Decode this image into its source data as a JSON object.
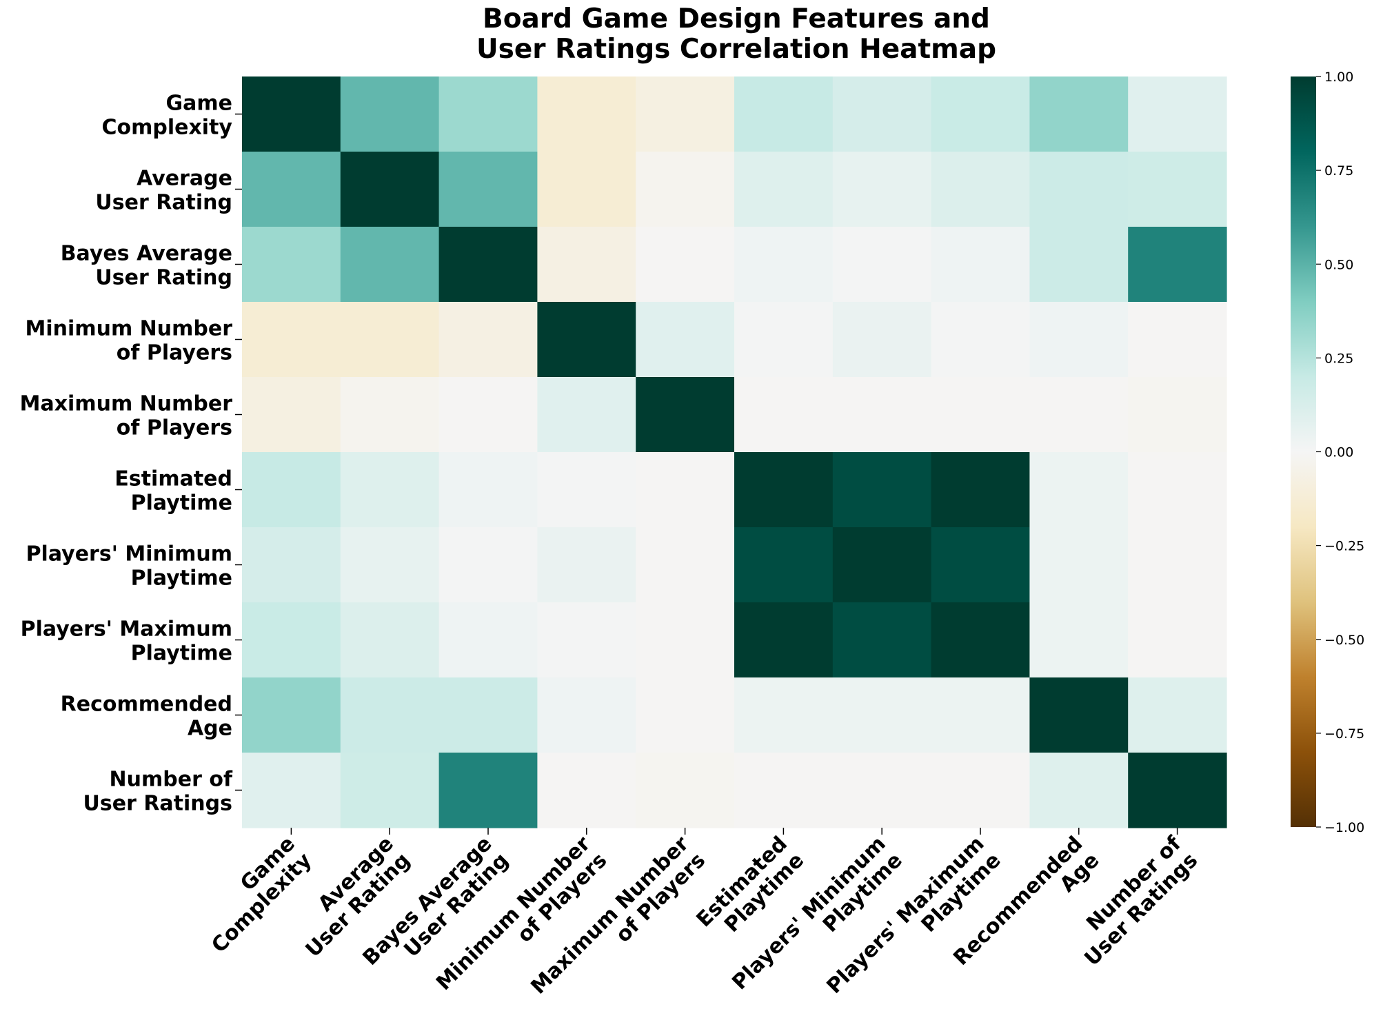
{
  "chart_data": {
    "type": "heatmap",
    "title": "Board Game Design Features and User Ratings Correlation Heatmap",
    "title_lines": [
      "Board Game Design Features and",
      "User Ratings Correlation Heatmap"
    ],
    "xlabel": "",
    "ylabel": "",
    "categories": [
      "Game Complexity",
      "Average User Rating",
      "Bayes Average User Rating",
      "Minimum Number of Players",
      "Maximum Number of Players",
      "Estimated Playtime",
      "Players' Minimum Playtime",
      "Players' Maximum Playtime",
      "Recommended Age",
      "Number of User Ratings"
    ],
    "category_lines": [
      [
        "Game",
        "Complexity"
      ],
      [
        "Average",
        "User Rating"
      ],
      [
        "Bayes Average",
        "User Rating"
      ],
      [
        "Minimum Number",
        "of Players"
      ],
      [
        "Maximum Number",
        "of Players"
      ],
      [
        "Estimated",
        "Playtime"
      ],
      [
        "Players' Minimum",
        "Playtime"
      ],
      [
        "Players' Maximum",
        "Playtime"
      ],
      [
        "Recommended",
        "Age"
      ],
      [
        "Number of",
        "User Ratings"
      ]
    ],
    "matrix": [
      [
        1.0,
        0.48,
        0.32,
        -0.13,
        -0.08,
        0.2,
        0.14,
        0.19,
        0.35,
        0.09
      ],
      [
        0.48,
        1.0,
        0.48,
        -0.13,
        -0.03,
        0.1,
        0.06,
        0.11,
        0.18,
        0.17
      ],
      [
        0.32,
        0.48,
        1.0,
        -0.07,
        -0.01,
        0.03,
        0.01,
        0.03,
        0.18,
        0.68
      ],
      [
        -0.13,
        -0.13,
        -0.07,
        1.0,
        0.09,
        0.01,
        0.05,
        0.01,
        0.03,
        -0.01
      ],
      [
        -0.08,
        -0.03,
        -0.01,
        0.09,
        1.0,
        -0.01,
        -0.01,
        -0.01,
        -0.01,
        -0.02
      ],
      [
        0.2,
        0.1,
        0.03,
        0.01,
        -0.01,
        1.0,
        0.92,
        1.0,
        0.04,
        -0.01
      ],
      [
        0.14,
        0.06,
        0.01,
        0.05,
        -0.01,
        0.92,
        1.0,
        0.92,
        0.04,
        -0.01
      ],
      [
        0.19,
        0.11,
        0.03,
        0.01,
        -0.01,
        1.0,
        0.92,
        1.0,
        0.04,
        -0.01
      ],
      [
        0.35,
        0.18,
        0.18,
        0.03,
        -0.01,
        0.04,
        0.04,
        0.04,
        1.0,
        0.1
      ],
      [
        0.09,
        0.17,
        0.68,
        -0.01,
        -0.02,
        -0.01,
        -0.01,
        -0.01,
        0.1,
        1.0
      ]
    ],
    "colorbar": {
      "vmin": -1.0,
      "vmax": 1.0,
      "ticks": [
        1.0,
        0.75,
        0.5,
        0.25,
        0.0,
        -0.25,
        -0.5,
        -0.75,
        -1.0
      ],
      "tick_labels": [
        "1.00",
        "0.75",
        "0.50",
        "0.25",
        "0.00",
        "−0.25",
        "−0.50",
        "−0.75",
        "−1.00"
      ]
    },
    "colormap": "BrBG",
    "colormap_stops": [
      "#543005",
      "#8c510a",
      "#bf812d",
      "#dfc27d",
      "#f6e8c3",
      "#f5f5f5",
      "#c7eae5",
      "#80cdc1",
      "#35978f",
      "#01665e",
      "#003c30"
    ],
    "grid": false,
    "legend": "colorbar-right"
  }
}
